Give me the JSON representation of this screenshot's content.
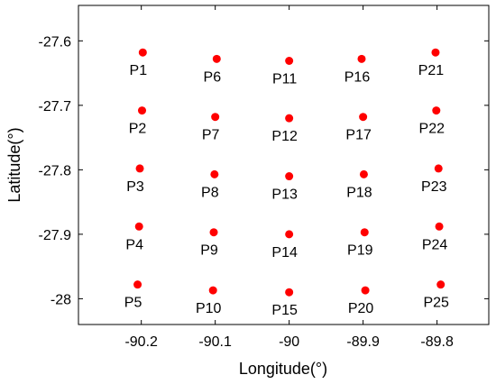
{
  "chart_data": {
    "type": "scatter",
    "title": "",
    "xlabel": "Longitude(°)",
    "ylabel": "Latitude(°)",
    "xlim": [
      -90.285,
      -89.73
    ],
    "ylim": [
      -28.04,
      -27.545
    ],
    "xticks": [
      -90.2,
      -90.1,
      -90.0,
      -89.9,
      -89.8
    ],
    "xtick_labels": [
      "-90.2",
      "-90.1",
      "-90",
      "-89.9",
      "-89.8"
    ],
    "yticks": [
      -27.6,
      -27.7,
      -27.8,
      -27.9,
      -28.0
    ],
    "ytick_labels": [
      "-27.6",
      "-27.7",
      "-27.8",
      "-27.9",
      "-28"
    ],
    "grid": false,
    "marker_color": "#ff0000",
    "points": [
      {
        "label": "P1",
        "x": -90.198,
        "y": -27.618
      },
      {
        "label": "P2",
        "x": -90.199,
        "y": -27.708
      },
      {
        "label": "P3",
        "x": -90.202,
        "y": -27.798
      },
      {
        "label": "P4",
        "x": -90.203,
        "y": -27.888
      },
      {
        "label": "P5",
        "x": -90.205,
        "y": -27.978
      },
      {
        "label": "P6",
        "x": -90.098,
        "y": -27.628
      },
      {
        "label": "P7",
        "x": -90.1,
        "y": -27.718
      },
      {
        "label": "P8",
        "x": -90.101,
        "y": -27.807
      },
      {
        "label": "P9",
        "x": -90.102,
        "y": -27.897
      },
      {
        "label": "P10",
        "x": -90.103,
        "y": -27.987
      },
      {
        "label": "P11",
        "x": -90.0,
        "y": -27.631
      },
      {
        "label": "P12",
        "x": -90.0,
        "y": -27.72
      },
      {
        "label": "P13",
        "x": -90.0,
        "y": -27.81
      },
      {
        "label": "P14",
        "x": -90.0,
        "y": -27.9
      },
      {
        "label": "P15",
        "x": -90.0,
        "y": -27.99
      },
      {
        "label": "P16",
        "x": -89.902,
        "y": -27.628
      },
      {
        "label": "P17",
        "x": -89.9,
        "y": -27.718
      },
      {
        "label": "P18",
        "x": -89.899,
        "y": -27.807
      },
      {
        "label": "P19",
        "x": -89.898,
        "y": -27.897
      },
      {
        "label": "P20",
        "x": -89.897,
        "y": -27.987
      },
      {
        "label": "P21",
        "x": -89.802,
        "y": -27.618
      },
      {
        "label": "P22",
        "x": -89.801,
        "y": -27.708
      },
      {
        "label": "P23",
        "x": -89.798,
        "y": -27.798
      },
      {
        "label": "P24",
        "x": -89.797,
        "y": -27.888
      },
      {
        "label": "P25",
        "x": -89.795,
        "y": -27.978
      }
    ]
  }
}
